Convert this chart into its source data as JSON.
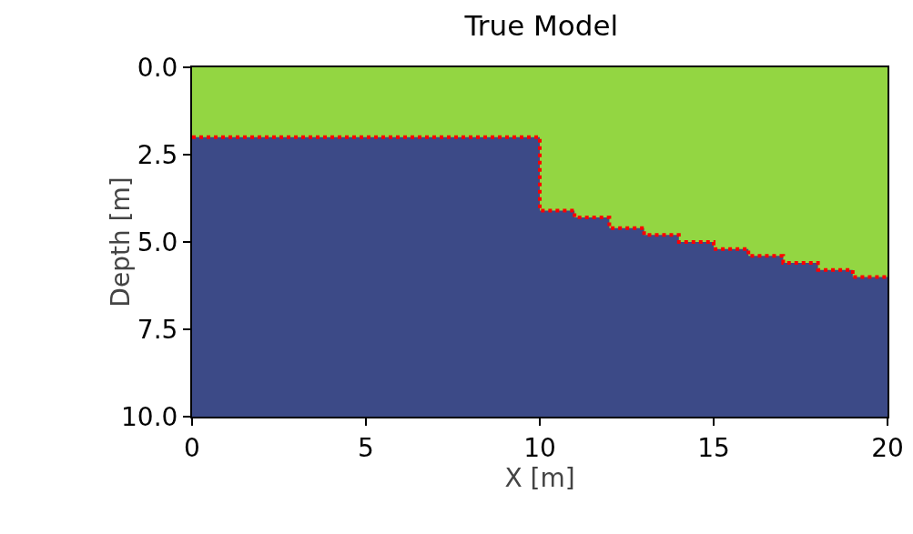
{
  "chart_data": {
    "type": "area",
    "title": "True Model",
    "xlabel": "X [m]",
    "ylabel": "Depth [m]",
    "x": [
      0,
      10,
      11,
      12,
      13,
      14,
      15,
      16,
      17,
      18,
      19,
      20
    ],
    "series": [
      {
        "color": "#93d642",
        "values": [
          2.0,
          4.1,
          4.3,
          4.6,
          4.8,
          5.0,
          5.2,
          5.4,
          5.6,
          5.8,
          6.0,
          6.0
        ]
      },
      {
        "type": "step",
        "color": "#ff0000",
        "line_style": "dotted",
        "values": [
          2.0,
          4.1,
          4.3,
          4.6,
          4.8,
          5.0,
          5.2,
          5.4,
          5.6,
          5.8,
          6.0,
          6.0
        ]
      }
    ],
    "bands": [
      {
        "axis": "y",
        "from": 0,
        "to": 10,
        "color": "#3c4a87"
      }
    ],
    "xlim": [
      0,
      20
    ],
    "xticks": [
      0,
      5,
      10,
      15,
      20
    ],
    "ylim": [
      10,
      0
    ],
    "yticks": [
      {
        "value": 0,
        "label": "0.0"
      },
      {
        "value": 2.5,
        "label": "2.5"
      },
      {
        "value": 5,
        "label": "5.0"
      },
      {
        "value": 7.5,
        "label": "7.5"
      },
      {
        "value": 10,
        "label": "10.0"
      }
    ],
    "grid": false,
    "legend": false
  }
}
